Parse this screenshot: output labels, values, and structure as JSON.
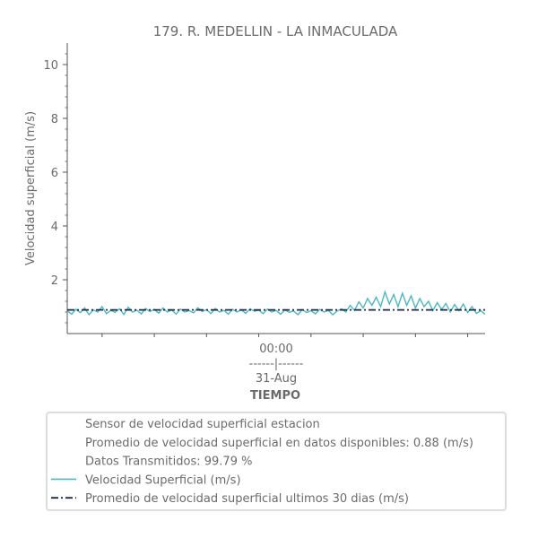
{
  "chart_data": {
    "type": "line",
    "title": "179. R. MEDELLIN - LA INMACULADA",
    "xlabel": "TIEMPO",
    "ylabel": "Velocidad superficial (m/s)",
    "xlim": [
      0,
      48
    ],
    "ylim": [
      0,
      10.8
    ],
    "yticks": [
      2,
      4,
      6,
      8,
      10
    ],
    "xtick_labels": [
      {
        "x": 24,
        "lines": [
          "00:00",
          "------|------",
          "31-Aug"
        ]
      }
    ],
    "legend": {
      "placement": "bottom",
      "info_lines": [
        "Sensor de velocidad superficial estacion",
        "Promedio de velocidad superficial en datos disponibles: 0.88 (m/s)",
        "Datos Transmitidos: 99.79 %"
      ]
    },
    "series": [
      {
        "name": "Velocidad Superficial (m/s)",
        "color": "#4db8c4",
        "style": "solid",
        "x": [
          0,
          0.5,
          1,
          1.5,
          2,
          2.5,
          3,
          3.5,
          4,
          4.5,
          5,
          5.5,
          6,
          6.5,
          7,
          7.5,
          8,
          8.5,
          9,
          9.5,
          10,
          10.5,
          11,
          11.5,
          12,
          12.5,
          13,
          13.5,
          14,
          14.5,
          15,
          15.5,
          16,
          16.5,
          17,
          17.5,
          18,
          18.5,
          19,
          19.5,
          20,
          20.5,
          21,
          21.5,
          22,
          22.5,
          23,
          23.5,
          24,
          24.5,
          25,
          25.5,
          26,
          26.5,
          27,
          27.5,
          28,
          28.5,
          29,
          29.5,
          30,
          30.5,
          31,
          31.5,
          32,
          32.5,
          33,
          33.5,
          34,
          34.5,
          35,
          35.5,
          36,
          36.5,
          37,
          37.5,
          38,
          38.5,
          39,
          39.5,
          40,
          40.5,
          41,
          41.5,
          42,
          42.5,
          43,
          43.5,
          44,
          44.5,
          45,
          45.5,
          46,
          46.5,
          47,
          47.5,
          48
        ],
        "values": [
          0.85,
          0.72,
          0.9,
          0.78,
          0.95,
          0.7,
          0.88,
          0.8,
          1.0,
          0.74,
          0.86,
          0.79,
          0.92,
          0.71,
          0.98,
          0.8,
          0.87,
          0.73,
          0.93,
          0.82,
          0.9,
          0.76,
          0.95,
          0.8,
          0.88,
          0.72,
          0.91,
          0.8,
          0.85,
          0.77,
          0.96,
          0.82,
          0.89,
          0.74,
          0.93,
          0.8,
          0.86,
          0.72,
          0.9,
          0.8,
          0.88,
          0.75,
          0.92,
          0.83,
          0.87,
          0.74,
          0.91,
          0.8,
          0.86,
          0.72,
          0.88,
          0.79,
          0.84,
          0.7,
          0.89,
          0.78,
          0.85,
          0.73,
          0.9,
          0.8,
          0.86,
          0.7,
          0.84,
          0.92,
          0.8,
          1.05,
          0.86,
          1.18,
          0.95,
          1.3,
          1.05,
          1.35,
          1.0,
          1.55,
          1.1,
          1.45,
          1.0,
          1.5,
          1.05,
          1.4,
          0.95,
          1.3,
          1.0,
          1.2,
          0.85,
          1.15,
          0.9,
          1.12,
          0.8,
          1.08,
          0.85,
          1.1,
          0.78,
          1.0,
          0.75,
          0.85,
          0.72
        ]
      },
      {
        "name": "Promedio de velocidad superficial ultimos 30 dias (m/s)",
        "color": "#1c2a44",
        "style": "dashdot",
        "x": [
          0,
          48
        ],
        "values": [
          0.88,
          0.88
        ]
      }
    ]
  }
}
